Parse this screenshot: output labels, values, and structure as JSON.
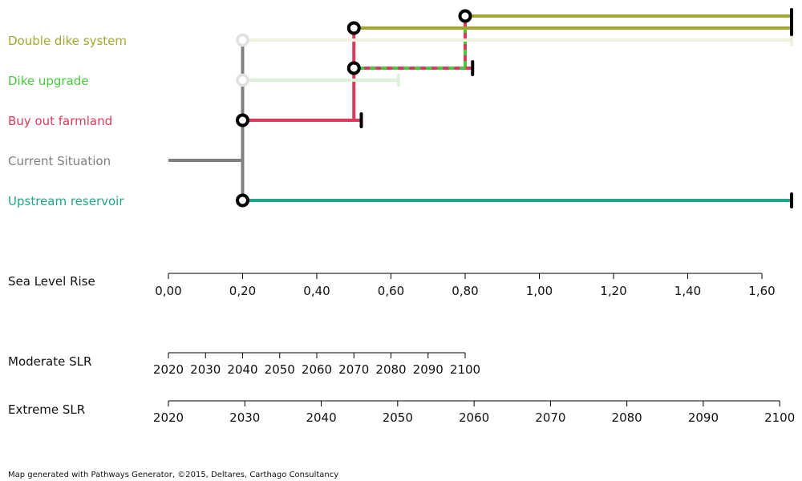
{
  "chart_data": {
    "type": "line",
    "chart_kind": "adaptation pathways map",
    "x_axis_title": "Sea Level Rise",
    "xlim": [
      0,
      1.6
    ],
    "x_ticks": [
      "0,00",
      "0,20",
      "0,40",
      "0,60",
      "0,80",
      "1,00",
      "1,20",
      "1,40",
      "1,60"
    ],
    "x_tick_values": [
      0,
      0.2,
      0.4,
      0.6,
      0.8,
      1.0,
      1.2,
      1.4,
      1.6
    ],
    "actions": [
      {
        "name": "Double dike system",
        "color": "#a4a630",
        "faded_color": "#f0eedc"
      },
      {
        "name": "Dike upgrade",
        "color": "#48c83c",
        "faded_color": "#dcf2d8"
      },
      {
        "name": "Buy out farmland",
        "color": "#dc3a5c"
      },
      {
        "name": "Current Situation",
        "color": "#7f7f7f"
      },
      {
        "name": "Upstream reservoir",
        "color": "#1fa58a"
      }
    ],
    "segments": [
      {
        "action": "Current Situation",
        "from": 0,
        "to": 0.2
      },
      {
        "action": "Upstream reservoir",
        "from": 0.2,
        "to": 1.68,
        "end": "tipping-point"
      },
      {
        "action": "Buy out farmland",
        "from": 0.2,
        "to": 0.52,
        "end": "tipping-point"
      },
      {
        "action": "Dike upgrade",
        "from": 0.2,
        "to": 0.62,
        "style": "faded"
      },
      {
        "action": "Double dike system",
        "from": 0.2,
        "to": 1.68,
        "style": "faded"
      },
      {
        "action": "Dike upgrade",
        "from": 0.5,
        "to": 0.82,
        "style": "dashed-with-Buy-out-farmland",
        "end": "tipping-point"
      },
      {
        "action": "Double dike system",
        "from": 0.5,
        "to": 1.68,
        "end": "tipping-point"
      },
      {
        "action": "Double dike system",
        "from": 0.8,
        "to": 1.68,
        "end": "tipping-point"
      }
    ],
    "transfers": [
      {
        "at": 0.2,
        "from_action": "Current Situation",
        "to_actions": [
          "Upstream reservoir",
          "Buy out farmland",
          "Dike upgrade",
          "Double dike system"
        ]
      },
      {
        "at": 0.5,
        "from_action": "Buy out farmland",
        "to_actions": [
          "Dike upgrade",
          "Double dike system"
        ]
      },
      {
        "at": 0.8,
        "from_action": "Dike upgrade",
        "to_actions": [
          "Double dike system"
        ]
      }
    ],
    "scenarios": [
      {
        "name": "Moderate SLR",
        "tick_labels": [
          "2020",
          "2030",
          "2040",
          "2050",
          "2060",
          "2070",
          "2080",
          "2090",
          "2100"
        ],
        "tick_slr": [
          0,
          0.1,
          0.2,
          0.3,
          0.4,
          0.5,
          0.6,
          0.7,
          0.8
        ]
      },
      {
        "name": "Extreme SLR",
        "tick_labels": [
          "2020",
          "2030",
          "2040",
          "2050",
          "2060",
          "2070",
          "2080",
          "2090",
          "2100"
        ],
        "tick_slr": [
          0,
          0.206,
          0.412,
          0.618,
          0.824,
          1.03,
          1.236,
          1.442,
          1.648
        ]
      }
    ],
    "footer": "Map generated with Pathways Generator, ©2015, Deltares, Carthago Consultancy"
  }
}
